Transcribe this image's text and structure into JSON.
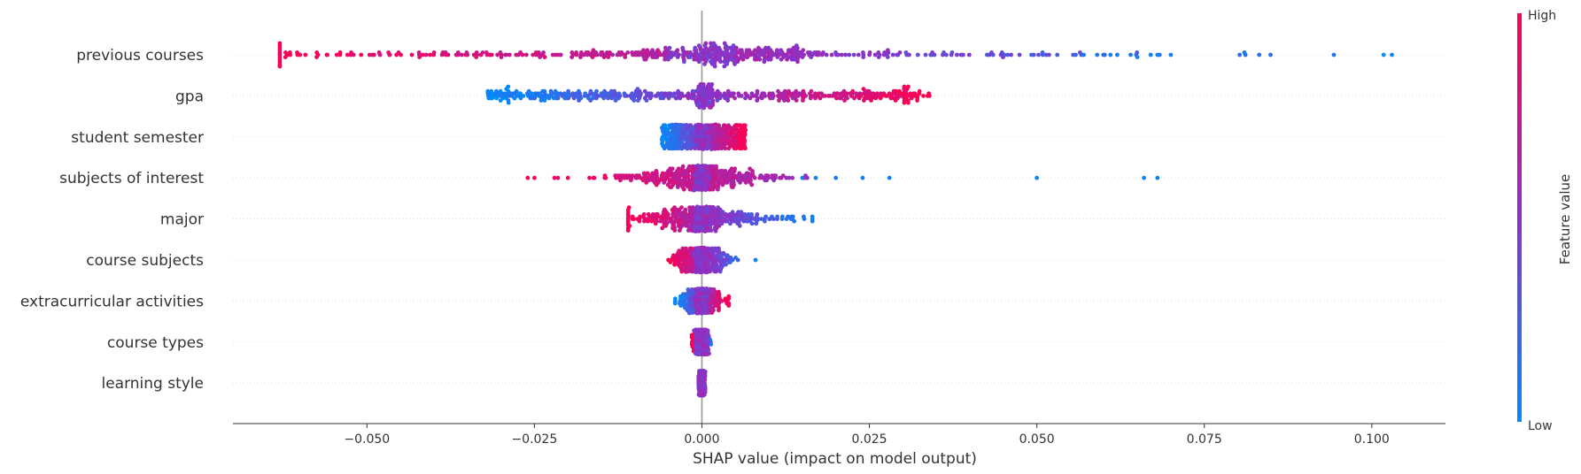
{
  "chart_data": {
    "type": "scatter",
    "subtype": "shap-beeswarm",
    "title": "",
    "xlabel": "SHAP value (impact on model output)",
    "ylabel": "",
    "xlim": [
      -0.07,
      0.111
    ],
    "x_ticks": [
      -0.05,
      -0.025,
      0.0,
      0.025,
      0.05,
      0.075,
      0.1
    ],
    "x_tick_labels": [
      "−0.050",
      "−0.025",
      "0.000",
      "0.025",
      "0.050",
      "0.075",
      "0.100"
    ],
    "grid": "horizontal dotted per feature",
    "zero_line": true,
    "colorbar": {
      "label": "Feature value",
      "high_label": "High",
      "low_label": "Low",
      "high_color": "#ff0051",
      "low_color": "#008bfb",
      "mid_color": "#8b32c8"
    },
    "features": [
      {
        "name": "previous courses",
        "range": [
          -0.063,
          0.103
        ],
        "spread": 0.034,
        "bulk_width": 0.008,
        "direction": "high_negative",
        "outliers": [
          {
            "x": -0.063,
            "v": 0.95
          },
          {
            "x": -0.0615,
            "v": 0.95
          },
          {
            "x": -0.056,
            "v": 0.9
          },
          {
            "x": -0.0545,
            "v": 0.9
          },
          {
            "x": -0.052,
            "v": 0.88
          },
          {
            "x": 0.057,
            "v": 0.1
          },
          {
            "x": 0.059,
            "v": 0.1
          },
          {
            "x": 0.061,
            "v": 0.08
          },
          {
            "x": 0.062,
            "v": 0.08
          },
          {
            "x": 0.064,
            "v": 0.08
          },
          {
            "x": 0.065,
            "v": 0.05
          },
          {
            "x": 0.067,
            "v": 0.05
          },
          {
            "x": 0.068,
            "v": 0.05
          },
          {
            "x": 0.07,
            "v": 0.05
          },
          {
            "x": 0.103,
            "v": 0.03
          }
        ]
      },
      {
        "name": "gpa",
        "range": [
          -0.032,
          0.034
        ],
        "spread": 0.022,
        "bulk_width": 0.0,
        "direction": "high_positive",
        "outliers": []
      },
      {
        "name": "student semester",
        "range": [
          -0.006,
          0.0065
        ],
        "spread": 0.006,
        "bulk_width": 0.0,
        "direction": "high_positive",
        "outliers": []
      },
      {
        "name": "subjects of interest",
        "range": [
          -0.026,
          0.068
        ],
        "spread": 0.007,
        "bulk_width": 0.001,
        "direction": "high_negative",
        "outliers": [
          {
            "x": -0.026,
            "v": 0.95
          },
          {
            "x": -0.025,
            "v": 0.95
          },
          {
            "x": -0.022,
            "v": 0.92
          },
          {
            "x": -0.02,
            "v": 0.92
          },
          {
            "x": 0.015,
            "v": 0.1
          },
          {
            "x": 0.017,
            "v": 0.08
          },
          {
            "x": 0.02,
            "v": 0.08
          },
          {
            "x": 0.024,
            "v": 0.08
          },
          {
            "x": 0.028,
            "v": 0.05
          },
          {
            "x": 0.05,
            "v": 0.05
          },
          {
            "x": 0.066,
            "v": 0.05
          },
          {
            "x": 0.068,
            "v": 0.05
          }
        ]
      },
      {
        "name": "major",
        "range": [
          -0.011,
          0.0165
        ],
        "spread": 0.006,
        "bulk_width": 0.001,
        "direction": "high_negative",
        "outliers": [
          {
            "x": -0.011,
            "v": 0.95
          },
          {
            "x": 0.0165,
            "v": 0.05
          }
        ]
      },
      {
        "name": "course subjects",
        "range": [
          -0.005,
          0.008
        ],
        "spread": 0.002,
        "bulk_width": 0.0005,
        "direction": "high_negative",
        "outliers": [
          {
            "x": 0.008,
            "v": 0.05
          }
        ]
      },
      {
        "name": "extracurricular activities",
        "range": [
          -0.004,
          0.004
        ],
        "spread": 0.0015,
        "bulk_width": 0.0005,
        "direction": "high_positive",
        "outliers": [
          {
            "x": 0.004,
            "v": 0.95
          }
        ]
      },
      {
        "name": "course types",
        "range": [
          -0.0015,
          0.002
        ],
        "spread": 0.0006,
        "bulk_width": 0.0003,
        "direction": "high_negative",
        "outliers": []
      },
      {
        "name": "learning style",
        "range": [
          -0.0005,
          0.0005
        ],
        "spread": 0.0002,
        "bulk_width": 0.0002,
        "direction": "high_negative",
        "outliers": []
      }
    ]
  }
}
